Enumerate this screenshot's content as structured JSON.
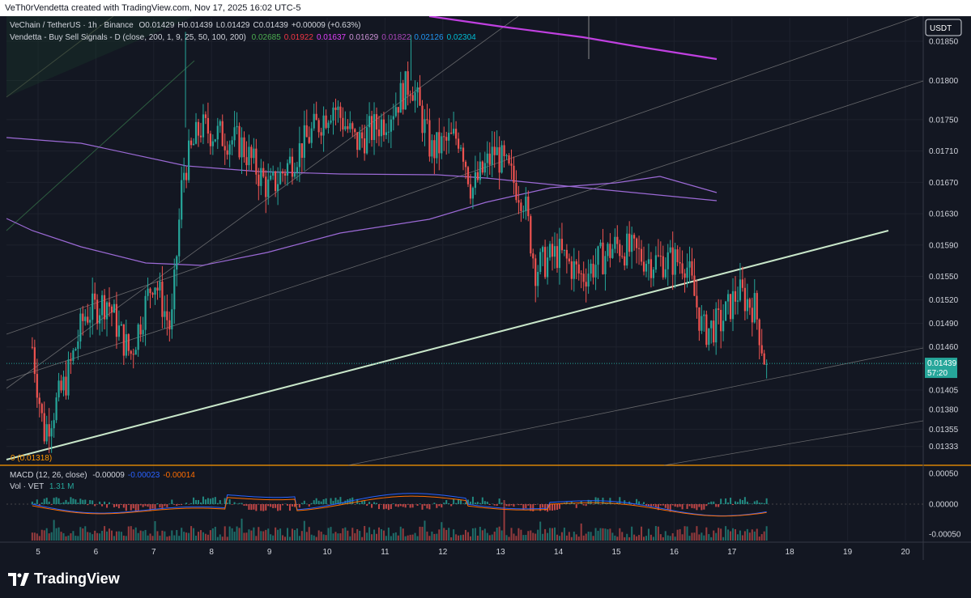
{
  "header": {
    "title": "VeTh0rVendetta created with TradingView.com, Nov 17, 2025 16:02 UTC-5"
  },
  "legend": {
    "symbol": "VeChain / TetherUS · 1h · Binance",
    "ohlc": [
      "O0.01429",
      "H0.01439",
      "L0.01429",
      "C0.01439",
      "+0.00009 (+0.63%)"
    ],
    "indicator_name": "Vendetta - Buy Sell Signals - D (close, 200, 1, 9, 25, 50, 100, 200)",
    "indicator_values": [
      {
        "text": "0.02685",
        "color": "#4caf50"
      },
      {
        "text": "0.01922",
        "color": "#f23645"
      },
      {
        "text": "0.01637",
        "color": "#e040fb"
      },
      {
        "text": "0.01629",
        "color": "#ce93d8"
      },
      {
        "text": "0.01822",
        "color": "#ab47bc"
      },
      {
        "text": "0.02126",
        "color": "#2196f3"
      },
      {
        "text": "0.02304",
        "color": "#00bcd4"
      }
    ]
  },
  "macd_legend": {
    "name": "MACD (12, 26, close)",
    "values": [
      {
        "text": "-0.00009",
        "color": "#d1d4dc"
      },
      {
        "text": "-0.00023",
        "color": "#2962ff"
      },
      {
        "text": "-0.00014",
        "color": "#ff6d00"
      }
    ]
  },
  "vol_legend": {
    "name": "Vol · VET",
    "value": "1.31 M"
  },
  "currency_badge": "USDT",
  "price_label": {
    "price": "0.01439",
    "countdown": "57:20"
  },
  "fib_label": "0 (0.01318)",
  "colors": {
    "up": "#26a69a",
    "down": "#ef5350",
    "bg": "#131722",
    "accent": "#26a69a",
    "ma_purple": "#9c27b0",
    "ma_light": "#b39ddb",
    "trend": "#c8e6c9",
    "fib": "#ff9800"
  },
  "logo_text": "TradingView",
  "chart_data": {
    "type": "candlestick",
    "y_ticks": [
      "0.01850",
      "0.01800",
      "0.01750",
      "0.01710",
      "0.01670",
      "0.01630",
      "0.01590",
      "0.01550",
      "0.01520",
      "0.01490",
      "0.01460",
      "0.01405",
      "0.01380",
      "0.01355",
      "0.01333"
    ],
    "macd_ticks": [
      "0.00050",
      "0.00000",
      "-0.00050"
    ],
    "x_ticks": [
      "5",
      "6",
      "7",
      "8",
      "9",
      "10",
      "11",
      "12",
      "13",
      "14",
      "15",
      "16",
      "17",
      "18",
      "19",
      "20"
    ],
    "ylim": [
      0.0131,
      0.0188
    ],
    "key_points": [
      {
        "day": 4.9,
        "close": 0.0146
      },
      {
        "day": 5.1,
        "close": 0.0135
      },
      {
        "day": 5.5,
        "close": 0.0142
      },
      {
        "day": 5.8,
        "close": 0.015
      },
      {
        "day": 6.2,
        "close": 0.0152
      },
      {
        "day": 6.4,
        "close": 0.0148
      },
      {
        "day": 6.6,
        "close": 0.0145
      },
      {
        "day": 7.0,
        "close": 0.0155
      },
      {
        "day": 7.3,
        "close": 0.0148
      },
      {
        "day": 7.5,
        "close": 0.0168
      },
      {
        "day": 7.8,
        "close": 0.0174
      },
      {
        "day": 8.5,
        "close": 0.0172
      },
      {
        "day": 9.0,
        "close": 0.0166
      },
      {
        "day": 9.6,
        "close": 0.0172
      },
      {
        "day": 10.1,
        "close": 0.0177
      },
      {
        "day": 10.5,
        "close": 0.0172
      },
      {
        "day": 11.0,
        "close": 0.0175
      },
      {
        "day": 11.45,
        "close": 0.018
      },
      {
        "day": 11.8,
        "close": 0.0171
      },
      {
        "day": 12.3,
        "close": 0.0173
      },
      {
        "day": 12.5,
        "close": 0.0166
      },
      {
        "day": 12.9,
        "close": 0.0171
      },
      {
        "day": 13.4,
        "close": 0.0165
      },
      {
        "day": 13.6,
        "close": 0.0156
      },
      {
        "day": 14.0,
        "close": 0.0158
      },
      {
        "day": 14.4,
        "close": 0.0155
      },
      {
        "day": 15.0,
        "close": 0.0159
      },
      {
        "day": 15.6,
        "close": 0.0157
      },
      {
        "day": 16.2,
        "close": 0.0157
      },
      {
        "day": 16.5,
        "close": 0.0148
      },
      {
        "day": 16.8,
        "close": 0.0149
      },
      {
        "day": 17.1,
        "close": 0.0153
      },
      {
        "day": 17.4,
        "close": 0.0151
      },
      {
        "day": 17.6,
        "close": 0.0143
      }
    ]
  }
}
